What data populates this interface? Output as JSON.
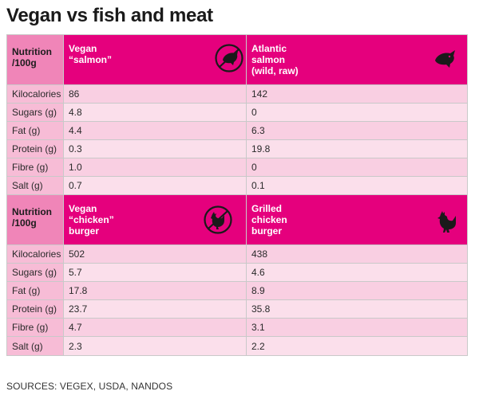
{
  "title": "Vegan vs fish and meat",
  "sections": [
    {
      "header": {
        "col1": "Nutrition\n/100g",
        "col2": "Vegan\n“salmon”",
        "col3": "Atlantic\nsalmon\n(wild, raw)",
        "col2_icon": "crossed-out-fish-icon",
        "col3_icon": "fish-icon"
      },
      "rows": [
        {
          "label": "Kilocalories",
          "vegan": "86",
          "animal": "142"
        },
        {
          "label": "Sugars (g)",
          "vegan": "4.8",
          "animal": "0"
        },
        {
          "label": "Fat (g)",
          "vegan": "4.4",
          "animal": "6.3"
        },
        {
          "label": "Protein (g)",
          "vegan": "0.3",
          "animal": "19.8"
        },
        {
          "label": "Fibre (g)",
          "vegan": "1.0",
          "animal": "0"
        },
        {
          "label": "Salt (g)",
          "vegan": "0.7",
          "animal": "0.1"
        }
      ]
    },
    {
      "header": {
        "col1": "Nutrition\n/100g",
        "col2": "Vegan\n“chicken”\nburger",
        "col3": "Grilled\nchicken\nburger",
        "col2_icon": "crossed-out-chicken-icon",
        "col3_icon": "chicken-icon"
      },
      "rows": [
        {
          "label": "Kilocalories",
          "vegan": "502",
          "animal": "438"
        },
        {
          "label": "Sugars (g)",
          "vegan": "5.7",
          "animal": "4.6"
        },
        {
          "label": "Fat (g)",
          "vegan": "17.8",
          "animal": "8.9"
        },
        {
          "label": "Protein (g)",
          "vegan": "23.7",
          "animal": "35.8"
        },
        {
          "label": "Fibre (g)",
          "vegan": "4.7",
          "animal": "3.1"
        },
        {
          "label": "Salt (g)",
          "vegan": "2.3",
          "animal": "2.2"
        }
      ]
    }
  ],
  "sources": "SOURCES: VEGEX, USDA, NANDOS"
}
